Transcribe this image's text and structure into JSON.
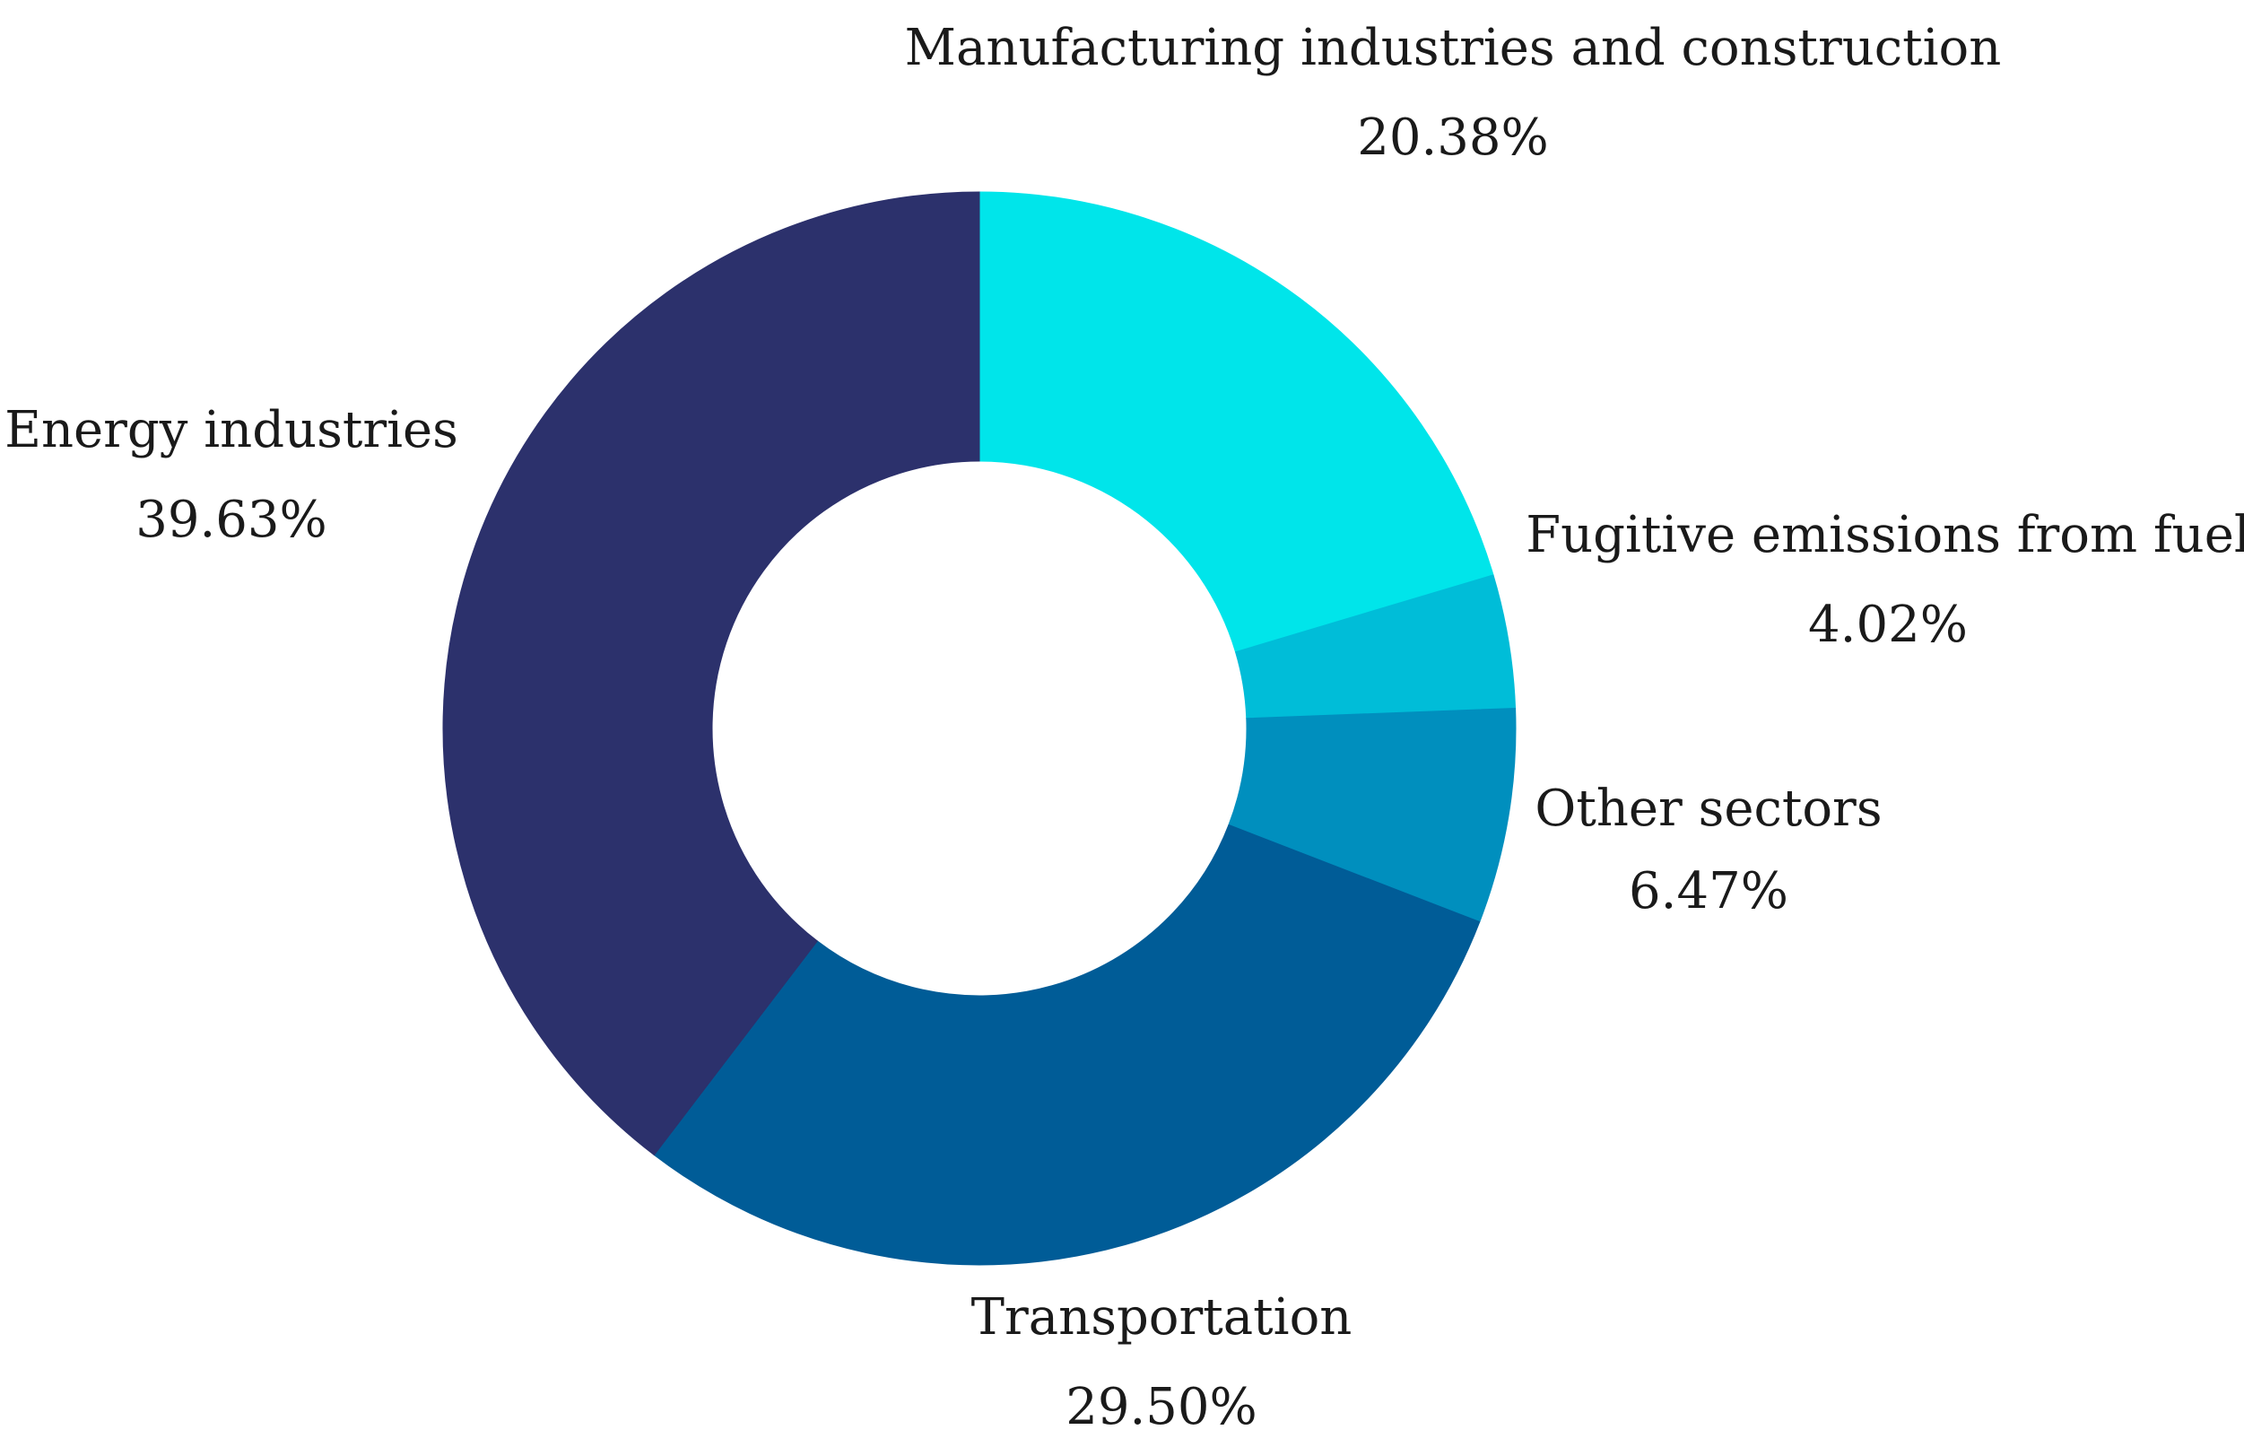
{
  "chart_data": {
    "type": "pie",
    "variant": "donut",
    "title": "",
    "units": "%",
    "slices": [
      {
        "label": "Manufacturing industries and construction",
        "value": 20.38,
        "display": "20.38%",
        "color": "#00E5EA"
      },
      {
        "label": "Fugitive emissions from fuel",
        "value": 4.02,
        "display": "4.02%",
        "color": "#00BDD8"
      },
      {
        "label": "Other sectors",
        "value": 6.47,
        "display": "6.47%",
        "color": "#008FBE"
      },
      {
        "label": "Transportation",
        "value": 29.5,
        "display": "29.50%",
        "color": "#005C97"
      },
      {
        "label": "Energy industries",
        "value": 39.63,
        "display": "39.63%",
        "color": "#2C316C"
      }
    ],
    "start_angle": "12 o'clock",
    "direction": "clockwise",
    "legend": "none"
  }
}
